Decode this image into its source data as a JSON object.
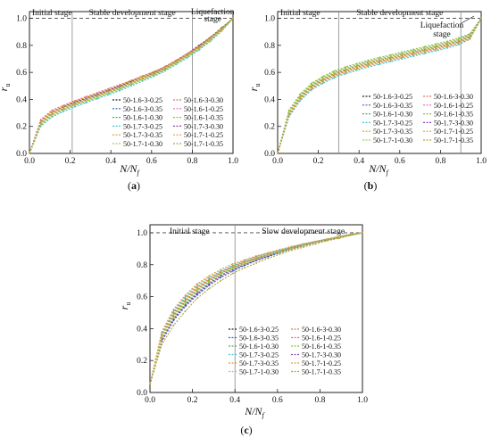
{
  "figure": {
    "panels": [
      {
        "label_open": "(",
        "label_letter": "a",
        "label_close": ")"
      },
      {
        "label_open": "(",
        "label_letter": "b",
        "label_close": ")"
      },
      {
        "label_open": "(",
        "label_letter": "c",
        "label_close": ")"
      }
    ]
  },
  "chart_data": [
    {
      "type": "line",
      "panel": "a",
      "xlabel": "N/N_f",
      "ylabel": "r_u",
      "xlim": [
        0,
        1
      ],
      "ylim": [
        0,
        1.05
      ],
      "x_ticks": [
        "0.0",
        "0.2",
        "0.4",
        "0.6",
        "0.8",
        "1.0"
      ],
      "y_ticks": [
        "0.0",
        "0.2",
        "0.4",
        "0.6",
        "0.8",
        "1.0"
      ],
      "reference_line_y": 1.0,
      "stage_dividers_x": [
        0.21,
        0.8
      ],
      "stage_labels": [
        "Initial stage",
        "Stable development stage",
        "Liquefaction",
        "stage"
      ],
      "legend_position": "lower-right",
      "series": [
        {
          "name": "50-1.6-3-0.25",
          "color": "#222222",
          "values": [
            0.0,
            0.24,
            0.31,
            0.345,
            0.38,
            0.41,
            0.44,
            0.47,
            0.5,
            0.535,
            0.57,
            0.6,
            0.64,
            0.69,
            0.74,
            0.8,
            0.86,
            0.93,
            1.0
          ]
        },
        {
          "name": "50-1.6-3-0.30",
          "color": "#e8735c",
          "values": [
            0.0,
            0.23,
            0.3,
            0.34,
            0.375,
            0.405,
            0.435,
            0.465,
            0.495,
            0.53,
            0.565,
            0.595,
            0.635,
            0.685,
            0.735,
            0.79,
            0.855,
            0.92,
            1.0
          ]
        },
        {
          "name": "50-1.6-3-0.35",
          "color": "#3a5fcd",
          "values": [
            0.0,
            0.22,
            0.29,
            0.33,
            0.365,
            0.395,
            0.425,
            0.455,
            0.485,
            0.52,
            0.555,
            0.585,
            0.625,
            0.675,
            0.725,
            0.78,
            0.845,
            0.915,
            1.0
          ]
        },
        {
          "name": "50-1.6-1-0.25",
          "color": "#e26ab0",
          "values": [
            0.0,
            0.25,
            0.32,
            0.355,
            0.39,
            0.42,
            0.45,
            0.48,
            0.51,
            0.54,
            0.575,
            0.605,
            0.645,
            0.69,
            0.74,
            0.795,
            0.86,
            0.925,
            1.0
          ]
        },
        {
          "name": "50-1.6-1-0.30",
          "color": "#4db04d",
          "values": [
            0.0,
            0.21,
            0.28,
            0.32,
            0.355,
            0.385,
            0.415,
            0.445,
            0.475,
            0.51,
            0.545,
            0.58,
            0.62,
            0.67,
            0.72,
            0.775,
            0.84,
            0.91,
            1.0
          ]
        },
        {
          "name": "50-1.6-1-0.35",
          "color": "#8fbf3a",
          "values": [
            0.0,
            0.22,
            0.29,
            0.325,
            0.36,
            0.39,
            0.42,
            0.45,
            0.48,
            0.515,
            0.55,
            0.585,
            0.625,
            0.675,
            0.725,
            0.785,
            0.85,
            0.92,
            1.0
          ]
        },
        {
          "name": "50-1.7-3-0.25",
          "color": "#3fc6d8",
          "values": [
            0.0,
            0.2,
            0.27,
            0.31,
            0.345,
            0.375,
            0.405,
            0.435,
            0.465,
            0.5,
            0.535,
            0.57,
            0.61,
            0.66,
            0.71,
            0.765,
            0.83,
            0.905,
            1.0
          ]
        },
        {
          "name": "50-1.7-3-0.30",
          "color": "#8e44ad",
          "values": [
            0.0,
            0.23,
            0.3,
            0.34,
            0.375,
            0.405,
            0.435,
            0.465,
            0.495,
            0.53,
            0.56,
            0.595,
            0.635,
            0.68,
            0.73,
            0.79,
            0.855,
            0.92,
            1.0
          ]
        },
        {
          "name": "50-1.7-3-0.35",
          "color": "#d4a017",
          "values": [
            0.0,
            0.24,
            0.31,
            0.35,
            0.385,
            0.415,
            0.445,
            0.475,
            0.505,
            0.54,
            0.57,
            0.605,
            0.64,
            0.685,
            0.735,
            0.79,
            0.855,
            0.925,
            1.0
          ]
        },
        {
          "name": "50-1.7-1-0.25",
          "color": "#e89b3a",
          "values": [
            0.0,
            0.22,
            0.29,
            0.33,
            0.365,
            0.395,
            0.425,
            0.455,
            0.49,
            0.52,
            0.555,
            0.59,
            0.63,
            0.675,
            0.725,
            0.78,
            0.845,
            0.915,
            1.0
          ]
        },
        {
          "name": "50-1.7-1-0.30",
          "color": "#9ccc65",
          "values": [
            0.0,
            0.21,
            0.28,
            0.32,
            0.355,
            0.385,
            0.415,
            0.445,
            0.475,
            0.51,
            0.545,
            0.575,
            0.615,
            0.665,
            0.715,
            0.77,
            0.835,
            0.905,
            1.0
          ]
        },
        {
          "name": "50-1.7-1-0.35",
          "color": "#b5a642",
          "values": [
            0.0,
            0.23,
            0.3,
            0.34,
            0.37,
            0.4,
            0.43,
            0.46,
            0.49,
            0.525,
            0.56,
            0.59,
            0.63,
            0.68,
            0.73,
            0.785,
            0.85,
            0.92,
            1.0
          ]
        }
      ]
    },
    {
      "type": "line",
      "panel": "b",
      "xlabel": "N/N_f",
      "ylabel": "r_u",
      "xlim": [
        0,
        1
      ],
      "ylim": [
        0,
        1.05
      ],
      "x_ticks": [
        "0.0",
        "0.2",
        "0.4",
        "0.6",
        "0.8",
        "1.0"
      ],
      "y_ticks": [
        "0.0",
        "0.2",
        "0.4",
        "0.6",
        "0.8",
        "1.0"
      ],
      "reference_line_y": 1.0,
      "stage_dividers_x": [
        0.3,
        0.9
      ],
      "stage_labels": [
        "Initial stage",
        "Stable development stage",
        "Liquefaction",
        "stage"
      ],
      "legend_position": "lower-right",
      "series": [
        {
          "name": "50-1.6-3-0.25",
          "color": "#222222",
          "values": [
            0.0,
            0.3,
            0.42,
            0.5,
            0.55,
            0.59,
            0.62,
            0.645,
            0.67,
            0.69,
            0.71,
            0.73,
            0.75,
            0.77,
            0.79,
            0.81,
            0.835,
            0.87,
            1.0
          ]
        },
        {
          "name": "50-1.6-3-0.30",
          "color": "#e8735c",
          "values": [
            0.0,
            0.29,
            0.41,
            0.49,
            0.54,
            0.58,
            0.61,
            0.635,
            0.66,
            0.68,
            0.7,
            0.72,
            0.74,
            0.76,
            0.78,
            0.8,
            0.825,
            0.86,
            1.0
          ]
        },
        {
          "name": "50-1.6-3-0.35",
          "color": "#3a5fcd",
          "values": [
            0.0,
            0.31,
            0.43,
            0.51,
            0.56,
            0.6,
            0.63,
            0.655,
            0.68,
            0.7,
            0.72,
            0.74,
            0.76,
            0.78,
            0.8,
            0.82,
            0.845,
            0.88,
            1.0
          ]
        },
        {
          "name": "50-1.6-1-0.25",
          "color": "#e26ab0",
          "values": [
            0.0,
            0.28,
            0.4,
            0.48,
            0.53,
            0.57,
            0.6,
            0.625,
            0.65,
            0.67,
            0.69,
            0.71,
            0.73,
            0.75,
            0.77,
            0.79,
            0.815,
            0.85,
            1.0
          ]
        },
        {
          "name": "50-1.6-1-0.30",
          "color": "#4db04d",
          "values": [
            0.0,
            0.3,
            0.42,
            0.5,
            0.55,
            0.59,
            0.62,
            0.645,
            0.67,
            0.69,
            0.71,
            0.73,
            0.75,
            0.77,
            0.79,
            0.81,
            0.835,
            0.87,
            1.0
          ]
        },
        {
          "name": "50-1.6-1-0.35",
          "color": "#8fbf3a",
          "values": [
            0.0,
            0.32,
            0.44,
            0.52,
            0.57,
            0.61,
            0.64,
            0.665,
            0.69,
            0.71,
            0.73,
            0.75,
            0.77,
            0.79,
            0.81,
            0.83,
            0.855,
            0.885,
            1.0
          ]
        },
        {
          "name": "50-1.7-3-0.25",
          "color": "#3fc6d8",
          "values": [
            0.0,
            0.27,
            0.39,
            0.47,
            0.52,
            0.56,
            0.59,
            0.615,
            0.64,
            0.66,
            0.68,
            0.7,
            0.72,
            0.74,
            0.76,
            0.78,
            0.805,
            0.845,
            1.0
          ]
        },
        {
          "name": "50-1.7-3-0.30",
          "color": "#8e44ad",
          "values": [
            0.0,
            0.29,
            0.41,
            0.49,
            0.54,
            0.58,
            0.61,
            0.635,
            0.66,
            0.68,
            0.7,
            0.72,
            0.74,
            0.76,
            0.78,
            0.8,
            0.825,
            0.86,
            1.0
          ]
        },
        {
          "name": "50-1.7-3-0.35",
          "color": "#d4a017",
          "values": [
            0.0,
            0.3,
            0.42,
            0.5,
            0.55,
            0.59,
            0.62,
            0.645,
            0.67,
            0.69,
            0.71,
            0.73,
            0.75,
            0.77,
            0.79,
            0.81,
            0.835,
            0.87,
            1.0
          ]
        },
        {
          "name": "50-1.7-1-0.25",
          "color": "#e89b3a",
          "values": [
            0.0,
            0.28,
            0.4,
            0.48,
            0.53,
            0.57,
            0.6,
            0.625,
            0.65,
            0.67,
            0.69,
            0.71,
            0.73,
            0.75,
            0.77,
            0.79,
            0.815,
            0.85,
            1.0
          ]
        },
        {
          "name": "50-1.7-1-0.30",
          "color": "#9ccc65",
          "values": [
            0.0,
            0.31,
            0.43,
            0.51,
            0.56,
            0.6,
            0.63,
            0.655,
            0.68,
            0.7,
            0.72,
            0.74,
            0.76,
            0.78,
            0.8,
            0.82,
            0.845,
            0.875,
            1.0
          ]
        },
        {
          "name": "50-1.7-1-0.35",
          "color": "#b5a642",
          "values": [
            0.0,
            0.29,
            0.41,
            0.49,
            0.54,
            0.58,
            0.61,
            0.635,
            0.66,
            0.68,
            0.7,
            0.72,
            0.74,
            0.76,
            0.78,
            0.8,
            0.825,
            0.86,
            1.0
          ]
        }
      ]
    },
    {
      "type": "line",
      "panel": "c",
      "xlabel": "N/N_f",
      "ylabel": "r_u",
      "xlim": [
        0,
        1
      ],
      "ylim": [
        0,
        1.05
      ],
      "x_ticks": [
        "0.0",
        "0.2",
        "0.4",
        "0.6",
        "0.8",
        "1.0"
      ],
      "y_ticks": [
        "0.0",
        "0.2",
        "0.4",
        "0.6",
        "0.8",
        "1.0"
      ],
      "reference_line_y": 1.0,
      "stage_dividers_x": [
        0.4
      ],
      "stage_labels": [
        "Initial stage",
        "Slow development stage"
      ],
      "legend_position": "lower-right",
      "series": [
        {
          "name": "50-1.6-3-0.25",
          "color": "#222222",
          "values": [
            0.05,
            0.33,
            0.46,
            0.55,
            0.62,
            0.68,
            0.73,
            0.77,
            0.8,
            0.83,
            0.855,
            0.88,
            0.9,
            0.92,
            0.94,
            0.955,
            0.97,
            0.985,
            1.0
          ]
        },
        {
          "name": "50-1.6-3-0.30",
          "color": "#e8735c",
          "values": [
            0.05,
            0.36,
            0.5,
            0.59,
            0.66,
            0.71,
            0.755,
            0.79,
            0.82,
            0.845,
            0.87,
            0.89,
            0.91,
            0.93,
            0.945,
            0.96,
            0.975,
            0.99,
            1.0
          ]
        },
        {
          "name": "50-1.6-3-0.35",
          "color": "#3a5fcd",
          "values": [
            0.05,
            0.32,
            0.45,
            0.54,
            0.61,
            0.67,
            0.72,
            0.76,
            0.795,
            0.825,
            0.85,
            0.875,
            0.9,
            0.92,
            0.94,
            0.955,
            0.97,
            0.985,
            1.0
          ]
        },
        {
          "name": "50-1.6-1-0.25",
          "color": "#e26ab0",
          "values": [
            0.05,
            0.35,
            0.49,
            0.58,
            0.65,
            0.705,
            0.75,
            0.785,
            0.815,
            0.84,
            0.865,
            0.885,
            0.905,
            0.925,
            0.945,
            0.96,
            0.975,
            0.99,
            1.0
          ]
        },
        {
          "name": "50-1.6-1-0.30",
          "color": "#4db04d",
          "values": [
            0.05,
            0.34,
            0.48,
            0.57,
            0.64,
            0.7,
            0.745,
            0.78,
            0.81,
            0.84,
            0.86,
            0.885,
            0.905,
            0.925,
            0.94,
            0.955,
            0.97,
            0.985,
            1.0
          ]
        },
        {
          "name": "50-1.6-1-0.35",
          "color": "#8fbf3a",
          "values": [
            0.05,
            0.33,
            0.47,
            0.56,
            0.63,
            0.69,
            0.74,
            0.775,
            0.805,
            0.835,
            0.86,
            0.88,
            0.9,
            0.92,
            0.94,
            0.955,
            0.97,
            0.985,
            1.0
          ]
        },
        {
          "name": "50-1.7-3-0.25",
          "color": "#3fc6d8",
          "values": [
            0.05,
            0.37,
            0.51,
            0.6,
            0.67,
            0.72,
            0.76,
            0.795,
            0.825,
            0.85,
            0.87,
            0.89,
            0.91,
            0.93,
            0.945,
            0.96,
            0.975,
            0.99,
            1.0
          ]
        },
        {
          "name": "50-1.7-3-0.30",
          "color": "#8e44ad",
          "values": [
            0.05,
            0.33,
            0.46,
            0.55,
            0.62,
            0.68,
            0.73,
            0.77,
            0.8,
            0.83,
            0.855,
            0.88,
            0.9,
            0.92,
            0.94,
            0.955,
            0.97,
            0.985,
            1.0
          ]
        },
        {
          "name": "50-1.7-3-0.35",
          "color": "#d4a017",
          "values": [
            0.05,
            0.35,
            0.49,
            0.58,
            0.65,
            0.705,
            0.75,
            0.785,
            0.815,
            0.84,
            0.865,
            0.885,
            0.905,
            0.925,
            0.945,
            0.96,
            0.975,
            0.99,
            1.0
          ]
        },
        {
          "name": "50-1.7-1-0.25",
          "color": "#e89b3a",
          "values": [
            0.05,
            0.38,
            0.52,
            0.61,
            0.68,
            0.73,
            0.77,
            0.805,
            0.83,
            0.855,
            0.875,
            0.895,
            0.915,
            0.93,
            0.945,
            0.96,
            0.975,
            0.99,
            1.0
          ]
        },
        {
          "name": "50-1.7-1-0.30",
          "color": "#9ccc65",
          "values": [
            0.05,
            0.34,
            0.47,
            0.56,
            0.63,
            0.69,
            0.74,
            0.775,
            0.805,
            0.835,
            0.86,
            0.88,
            0.9,
            0.92,
            0.94,
            0.955,
            0.97,
            0.985,
            1.0
          ]
        },
        {
          "name": "50-1.7-1-0.35",
          "color": "#b5a642",
          "values": [
            0.05,
            0.3,
            0.42,
            0.51,
            0.59,
            0.65,
            0.7,
            0.745,
            0.78,
            0.81,
            0.84,
            0.865,
            0.89,
            0.91,
            0.93,
            0.95,
            0.965,
            0.985,
            1.0
          ]
        }
      ]
    }
  ]
}
